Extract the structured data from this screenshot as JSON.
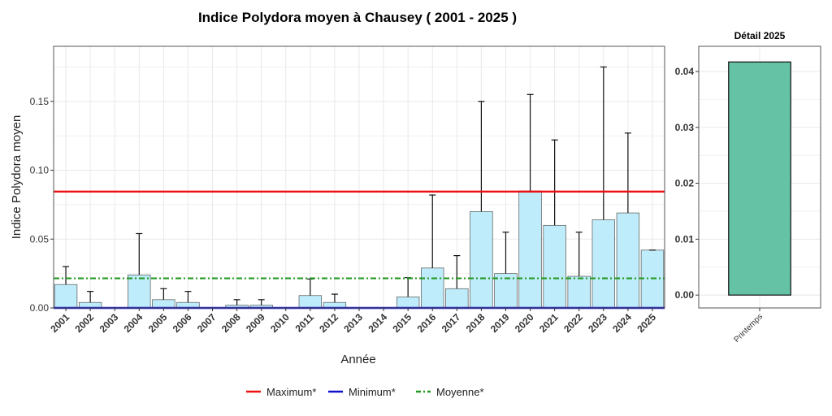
{
  "title": "Indice Polydora moyen à Chausey ( 2001 - 2025 )",
  "legend": {
    "items": [
      {
        "label": "Maximum*",
        "color": "#ee1111",
        "dash": "solid"
      },
      {
        "label": "Minimum*",
        "color": "#1111cc",
        "dash": "solid"
      },
      {
        "label": "Moyenne*",
        "color": "#229922",
        "dash": "dotdash"
      }
    ]
  },
  "colors": {
    "bar_fill": "#bfecfa",
    "bar_stroke": "#555555",
    "detail_fill": "#66c2a5",
    "detail_stroke": "#111111",
    "grid": "#e8e8e8",
    "panel_border": "#555555"
  },
  "chart_data": [
    {
      "type": "bar",
      "title": "",
      "xlabel": "Année",
      "ylabel": "Indice Polydora moyen",
      "ylim": [
        0,
        0.19
      ],
      "yticks": [
        0.0,
        0.05,
        0.1,
        0.15
      ],
      "ytick_labels": [
        "0.00",
        "0.05",
        "0.10",
        "0.15"
      ],
      "grid": true,
      "categories": [
        "2001",
        "2002",
        "2003",
        "2004",
        "2005",
        "2006",
        "2007",
        "2008",
        "2009",
        "2010",
        "2011",
        "2012",
        "2013",
        "2014",
        "2015",
        "2016",
        "2017",
        "2018",
        "2019",
        "2020",
        "2021",
        "2022",
        "2023",
        "2024",
        "2025"
      ],
      "values": [
        0.017,
        0.004,
        0,
        0.024,
        0.006,
        0.004,
        0,
        0.002,
        0.002,
        0,
        0.009,
        0.004,
        0,
        0,
        0.008,
        0.029,
        0.014,
        0.07,
        0.025,
        0.085,
        0.06,
        0.023,
        0.064,
        0.069,
        0.042
      ],
      "error_upper": [
        0.03,
        0.012,
        null,
        0.054,
        0.014,
        0.012,
        null,
        0.006,
        0.006,
        null,
        0.021,
        0.01,
        null,
        null,
        0.022,
        0.082,
        0.038,
        0.15,
        0.055,
        0.155,
        0.122,
        0.055,
        0.175,
        0.127,
        0.042
      ],
      "reference_lines": [
        {
          "name": "Maximum*",
          "value": 0.0845
        },
        {
          "name": "Minimum*",
          "value": 0.0
        },
        {
          "name": "Moyenne*",
          "value": 0.0215
        }
      ]
    },
    {
      "type": "bar",
      "title": "Détail 2025",
      "categories": [
        "Printemps"
      ],
      "values": [
        0.0417
      ],
      "ylim": [
        -0.0023,
        0.0445
      ],
      "yticks": [
        0.0,
        0.01,
        0.02,
        0.03,
        0.04
      ],
      "ytick_labels": [
        "0.00",
        "0.01",
        "0.02",
        "0.03",
        "0.04"
      ],
      "grid": true
    }
  ]
}
